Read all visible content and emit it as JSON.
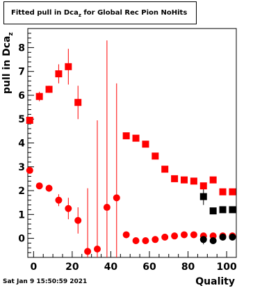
{
  "title": {
    "main": "Fitted pull in Dca",
    "subscript": "z",
    "rest": " for Global Rec Pion NoHits"
  },
  "footer": "Sat Jan  9 15:50:59 2021",
  "chart_data": {
    "type": "scatter",
    "xlabel": "Quality",
    "ylabel": {
      "main": "pull in Dca",
      "subscript": "z"
    },
    "xlim": [
      -3,
      105
    ],
    "ylim": [
      -0.8,
      8.8
    ],
    "x_ticks": [
      0,
      20,
      40,
      60,
      80,
      100
    ],
    "y_ticks": [
      0,
      1,
      2,
      3,
      4,
      5,
      6,
      7,
      8
    ],
    "grid": false,
    "series": [
      {
        "marker": "square",
        "color": "#ff0000",
        "points": [
          {
            "x": -2,
            "y": 4.95
          },
          {
            "x": 3,
            "y": 5.95,
            "err": 0.2
          },
          {
            "x": 8,
            "y": 6.25,
            "err": 0.15
          },
          {
            "x": 13,
            "y": 6.9,
            "err": 0.4
          },
          {
            "x": 18,
            "y": 7.2,
            "err": 0.75
          },
          {
            "x": 23,
            "y": 5.7,
            "err": 0.7
          },
          {
            "x": 48,
            "y": 4.3
          },
          {
            "x": 53,
            "y": 4.2
          },
          {
            "x": 58,
            "y": 3.95
          },
          {
            "x": 63,
            "y": 3.45
          },
          {
            "x": 68,
            "y": 2.9
          },
          {
            "x": 73,
            "y": 2.5
          },
          {
            "x": 78,
            "y": 2.45
          },
          {
            "x": 83,
            "y": 2.4
          },
          {
            "x": 88,
            "y": 2.2
          },
          {
            "x": 93,
            "y": 2.45
          },
          {
            "x": 98,
            "y": 1.95
          },
          {
            "x": 103,
            "y": 1.95
          }
        ]
      },
      {
        "marker": "circle",
        "color": "#ff0000",
        "points": [
          {
            "x": -2,
            "y": 2.85
          },
          {
            "x": 3,
            "y": 2.2
          },
          {
            "x": 8,
            "y": 2.1,
            "err": 0.15
          },
          {
            "x": 13,
            "y": 1.6,
            "err": 0.25
          },
          {
            "x": 18,
            "y": 1.25,
            "err": 0.45
          },
          {
            "x": 23,
            "y": 0.75,
            "err": 0.55
          },
          {
            "x": 28,
            "y": -0.55,
            "err": 2.65
          },
          {
            "x": 33,
            "y": -0.45,
            "err": 5.4
          },
          {
            "x": 38,
            "y": 1.3,
            "err": 7.0
          },
          {
            "x": 43,
            "y": 1.7,
            "err": 4.8
          },
          {
            "x": 48,
            "y": 0.15
          },
          {
            "x": 53,
            "y": -0.1
          },
          {
            "x": 58,
            "y": -0.1
          },
          {
            "x": 63,
            "y": -0.05
          },
          {
            "x": 68,
            "y": 0.05
          },
          {
            "x": 73,
            "y": 0.1
          },
          {
            "x": 78,
            "y": 0.15
          },
          {
            "x": 83,
            "y": 0.15
          },
          {
            "x": 88,
            "y": 0.1
          },
          {
            "x": 93,
            "y": 0.1
          },
          {
            "x": 98,
            "y": 0.1
          },
          {
            "x": 103,
            "y": 0.1
          }
        ]
      },
      {
        "marker": "square",
        "color": "#000000",
        "points": [
          {
            "x": 88,
            "y": 1.75,
            "err": 0.35
          },
          {
            "x": 93,
            "y": 1.15
          },
          {
            "x": 98,
            "y": 1.2
          },
          {
            "x": 103,
            "y": 1.2
          }
        ]
      },
      {
        "marker": "circle",
        "color": "#000000",
        "points": [
          {
            "x": 88,
            "y": -0.05,
            "err": 0.2
          },
          {
            "x": 93,
            "y": -0.1
          },
          {
            "x": 98,
            "y": 0.05
          },
          {
            "x": 103,
            "y": 0.05
          }
        ]
      }
    ]
  }
}
